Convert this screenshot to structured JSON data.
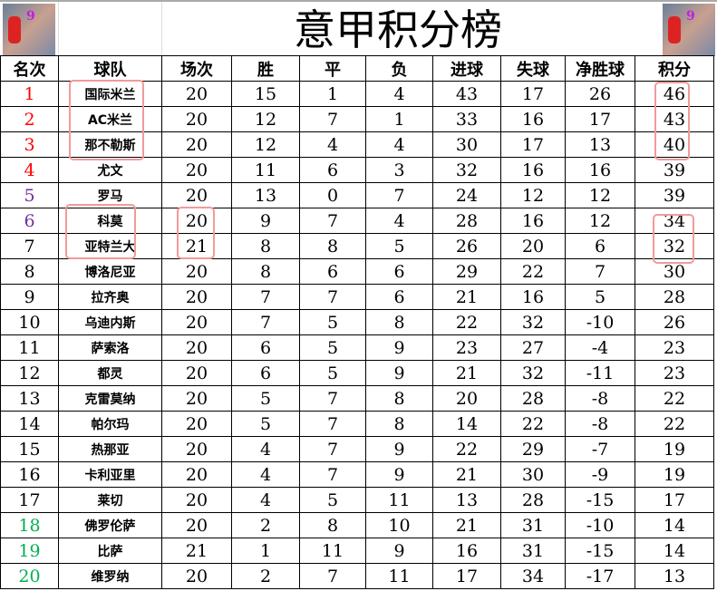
{
  "title": "意甲积分榜",
  "colors": {
    "top": "#ff0000",
    "mid": "#7030a0",
    "bottom": "#00b050",
    "highlight_box": "#f29a9a"
  },
  "headers": [
    "名次",
    "球队",
    "场次",
    "胜",
    "平",
    "负",
    "进球",
    "失球",
    "净胜球",
    "积分"
  ],
  "rows": [
    [
      "1",
      "国际米兰",
      "20",
      "15",
      "1",
      "4",
      "43",
      "17",
      "26",
      "46"
    ],
    [
      "2",
      "AC米兰",
      "20",
      "12",
      "7",
      "1",
      "33",
      "16",
      "17",
      "43"
    ],
    [
      "3",
      "那不勒斯",
      "20",
      "12",
      "4",
      "4",
      "30",
      "17",
      "13",
      "40"
    ],
    [
      "4",
      "尤文",
      "20",
      "11",
      "6",
      "3",
      "32",
      "16",
      "16",
      "39"
    ],
    [
      "5",
      "罗马",
      "20",
      "13",
      "0",
      "7",
      "24",
      "12",
      "12",
      "39"
    ],
    [
      "6",
      "科莫",
      "20",
      "9",
      "7",
      "4",
      "28",
      "16",
      "12",
      "34"
    ],
    [
      "7",
      "亚特兰大",
      "21",
      "8",
      "8",
      "5",
      "26",
      "20",
      "6",
      "32"
    ],
    [
      "8",
      "博洛尼亚",
      "20",
      "8",
      "6",
      "6",
      "29",
      "22",
      "7",
      "30"
    ],
    [
      "9",
      "拉齐奥",
      "20",
      "7",
      "7",
      "6",
      "21",
      "16",
      "5",
      "28"
    ],
    [
      "10",
      "乌迪内斯",
      "20",
      "7",
      "5",
      "8",
      "22",
      "32",
      "-10",
      "26"
    ],
    [
      "11",
      "萨索洛",
      "20",
      "6",
      "5",
      "9",
      "23",
      "27",
      "-4",
      "23"
    ],
    [
      "12",
      "都灵",
      "20",
      "6",
      "5",
      "9",
      "21",
      "32",
      "-11",
      "23"
    ],
    [
      "13",
      "克雷莫纳",
      "20",
      "5",
      "7",
      "8",
      "20",
      "28",
      "-8",
      "22"
    ],
    [
      "14",
      "帕尔玛",
      "20",
      "5",
      "7",
      "8",
      "14",
      "22",
      "-8",
      "22"
    ],
    [
      "15",
      "热那亚",
      "20",
      "4",
      "7",
      "9",
      "22",
      "29",
      "-7",
      "19"
    ],
    [
      "16",
      "卡利亚里",
      "20",
      "4",
      "7",
      "9",
      "21",
      "30",
      "-9",
      "19"
    ],
    [
      "17",
      "莱切",
      "20",
      "4",
      "5",
      "11",
      "13",
      "28",
      "-15",
      "17"
    ],
    [
      "18",
      "佛罗伦萨",
      "20",
      "2",
      "8",
      "10",
      "21",
      "31",
      "-10",
      "14"
    ],
    [
      "19",
      "比萨",
      "21",
      "1",
      "11",
      "9",
      "16",
      "31",
      "-15",
      "14"
    ],
    [
      "20",
      "维罗纳",
      "20",
      "2",
      "7",
      "11",
      "17",
      "34",
      "-17",
      "13"
    ]
  ]
}
